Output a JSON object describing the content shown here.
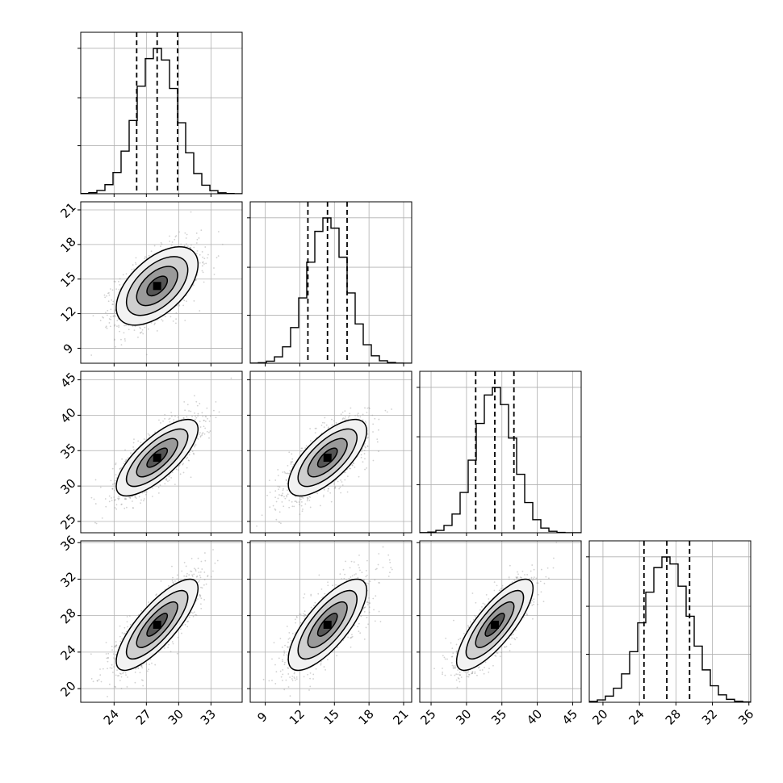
{
  "chart_data": {
    "type": "corner",
    "grid": true,
    "colors": {
      "line": "#000000",
      "grid": "#b0b0b0",
      "points": "#9a9a9a"
    },
    "parameters": [
      {
        "ticks": [
          24,
          27,
          30,
          33
        ],
        "tick_labels": [
          "24",
          "27",
          "30",
          "33"
        ],
        "range": [
          20.9,
          35.9
        ],
        "median": 28.0,
        "q16": 26.1,
        "q84": 29.9,
        "sigma": 1.9
      },
      {
        "ticks": [
          9,
          12,
          15,
          18,
          21
        ],
        "tick_labels": [
          "9",
          "12",
          "15",
          "18",
          "21"
        ],
        "range": [
          7.7,
          21.7
        ],
        "median": 14.4,
        "q16": 12.7,
        "q84": 16.1,
        "sigma": 1.7
      },
      {
        "ticks": [
          25,
          30,
          35,
          40,
          45
        ],
        "tick_labels": [
          "25",
          "30",
          "35",
          "40",
          "45"
        ],
        "range": [
          23.4,
          46.2
        ],
        "median": 34.0,
        "q16": 31.3,
        "q84": 36.7,
        "sigma": 2.7
      },
      {
        "ticks": [
          20,
          24,
          28,
          32,
          36
        ],
        "tick_labels": [
          "20",
          "24",
          "28",
          "32",
          "36"
        ],
        "range": [
          18.5,
          36.2
        ],
        "median": 27.0,
        "q16": 24.5,
        "q84": 29.5,
        "sigma": 2.5
      }
    ],
    "correlations": [
      [
        1,
        0.55,
        0.75,
        0.8
      ],
      [
        0.55,
        1,
        0.7,
        0.75
      ],
      [
        0.75,
        0.7,
        1,
        0.8
      ],
      [
        0.8,
        0.75,
        0.8,
        1
      ]
    ],
    "contour_levels": [
      0.5,
      1.0,
      1.5,
      2.0
    ],
    "histogram_bins": 20,
    "diagonal": "histograms of each parameter with dashed lines at the 16th, 50th and 84th percentiles",
    "off_diagonal": "2D density: scattered samples, shaded histogram and contours"
  }
}
